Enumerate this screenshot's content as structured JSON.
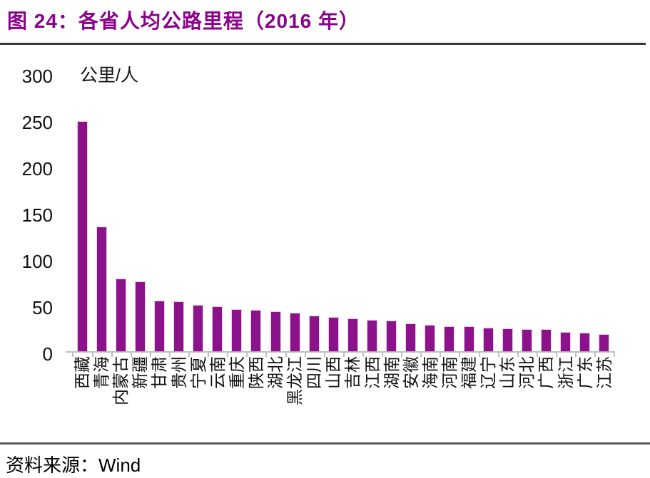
{
  "page": {
    "title": "图 24：各省人均公路里程（2016 年）"
  },
  "footer": {
    "label": "资料来源：",
    "source": "Wind"
  },
  "chart_data": {
    "type": "bar",
    "title": "各省人均公路里程（2016 年）",
    "unit_label": "公里/人",
    "categories": [
      "西藏",
      "青海",
      "内蒙古",
      "新疆",
      "甘肃",
      "贵州",
      "宁夏",
      "云南",
      "重庆",
      "陕西",
      "湖北",
      "黑龙江",
      "四川",
      "山西",
      "吉林",
      "江西",
      "湖南",
      "安徽",
      "海南",
      "河南",
      "福建",
      "辽宁",
      "山东",
      "河北",
      "广西",
      "浙江",
      "广东",
      "江苏"
    ],
    "values": [
      248,
      134,
      78,
      75,
      54,
      53,
      49,
      48,
      45,
      44,
      42,
      41,
      38,
      36,
      35,
      33,
      32,
      29,
      28,
      26,
      26,
      25,
      24,
      23,
      23,
      20,
      19,
      18
    ],
    "xlabel": "",
    "ylabel": "公里/人",
    "ylim": [
      0,
      300
    ],
    "yticks": [
      0,
      50,
      100,
      150,
      200,
      250,
      300
    ],
    "grid": false,
    "legend_position": "none",
    "bar_color": "#8C128C",
    "title_color": "#8B018B",
    "axis_color": "#BFBFBF",
    "source": "Wind"
  }
}
